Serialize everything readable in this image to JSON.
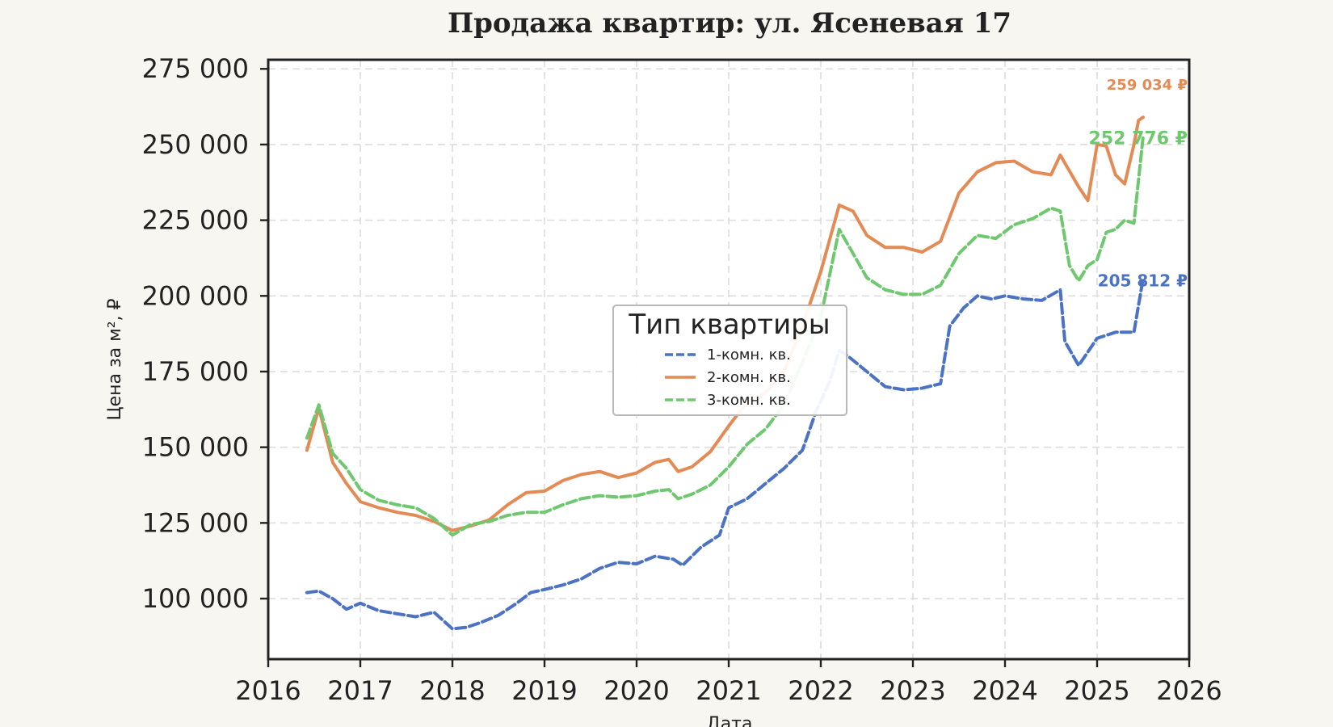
{
  "chart_data": {
    "type": "line",
    "title": "Продажа квартир: ул. Ясеневая 17",
    "xlabel": "Дата",
    "ylabel": "Цена за м², ₽",
    "xlim": [
      2016,
      2026
    ],
    "ylim": [
      80000,
      278000
    ],
    "x_ticks": [
      2016,
      2017,
      2018,
      2019,
      2020,
      2021,
      2022,
      2023,
      2024,
      2025,
      2026
    ],
    "x_tick_labels": [
      "2016",
      "2017",
      "2018",
      "2019",
      "2020",
      "2021",
      "2022",
      "2023",
      "2024",
      "2025",
      "2026"
    ],
    "y_ticks": [
      100000,
      125000,
      150000,
      175000,
      200000,
      225000,
      250000,
      275000
    ],
    "y_tick_labels": [
      "100 000",
      "125 000",
      "150 000",
      "175 000",
      "200 000",
      "225 000",
      "250 000",
      "275 000"
    ],
    "grid": true,
    "legend": {
      "title": "Тип квартиры",
      "position": "center"
    },
    "series": [
      {
        "name": "1-комн. кв.",
        "color": "#4c72c4",
        "style": "dashed",
        "end_label": "205 812 ₽",
        "x": [
          2016.42,
          2016.55,
          2016.7,
          2016.85,
          2017.0,
          2017.2,
          2017.4,
          2017.6,
          2017.8,
          2018.0,
          2018.15,
          2018.3,
          2018.5,
          2018.7,
          2018.85,
          2019.0,
          2019.2,
          2019.4,
          2019.6,
          2019.8,
          2020.0,
          2020.2,
          2020.4,
          2020.5,
          2020.7,
          2020.9,
          2021.0,
          2021.2,
          2021.4,
          2021.6,
          2021.8,
          2021.95,
          2022.1,
          2022.2,
          2022.3,
          2022.5,
          2022.7,
          2022.9,
          2023.1,
          2023.3,
          2023.4,
          2023.55,
          2023.7,
          2023.85,
          2024.0,
          2024.2,
          2024.4,
          2024.6,
          2024.65,
          2024.8,
          2025.0,
          2025.2,
          2025.4,
          2025.5
        ],
        "y": [
          102000,
          102500,
          100000,
          96500,
          98500,
          96000,
          95000,
          94000,
          95500,
          90000,
          90500,
          92000,
          94500,
          98500,
          102000,
          103000,
          104500,
          106500,
          110000,
          112000,
          111500,
          114000,
          113000,
          111000,
          117000,
          121000,
          130000,
          133000,
          138000,
          143000,
          149000,
          162000,
          172000,
          182000,
          180000,
          175000,
          170000,
          169000,
          169500,
          171000,
          190000,
          196000,
          200000,
          199000,
          200000,
          199000,
          198500,
          202000,
          185000,
          177000,
          186000,
          188000,
          188000,
          205812
        ]
      },
      {
        "name": "2-комн. кв.",
        "color": "#e48a55",
        "style": "solid",
        "end_label": "259 034 ₽",
        "x": [
          2016.42,
          2016.55,
          2016.7,
          2016.85,
          2017.0,
          2017.2,
          2017.4,
          2017.6,
          2017.8,
          2018.0,
          2018.2,
          2018.4,
          2018.6,
          2018.8,
          2019.0,
          2019.2,
          2019.4,
          2019.6,
          2019.8,
          2020.0,
          2020.2,
          2020.35,
          2020.45,
          2020.6,
          2020.8,
          2021.0,
          2021.2,
          2021.4,
          2021.6,
          2021.8,
          2022.0,
          2022.2,
          2022.35,
          2022.5,
          2022.7,
          2022.9,
          2023.1,
          2023.3,
          2023.5,
          2023.7,
          2023.9,
          2024.1,
          2024.3,
          2024.5,
          2024.6,
          2024.8,
          2024.9,
          2025.0,
          2025.1,
          2025.2,
          2025.3,
          2025.4,
          2025.45,
          2025.5
        ],
        "y": [
          149000,
          163000,
          145000,
          138000,
          132000,
          130000,
          128500,
          127500,
          125500,
          122500,
          124000,
          126000,
          131000,
          135000,
          135500,
          139000,
          141000,
          142000,
          140000,
          141500,
          145000,
          146000,
          142000,
          143500,
          148500,
          157000,
          165000,
          168000,
          175000,
          190000,
          208000,
          230000,
          228000,
          220000,
          216000,
          216000,
          214500,
          218000,
          234000,
          241000,
          244000,
          244500,
          241000,
          240000,
          246500,
          236000,
          231500,
          250000,
          249500,
          240000,
          237000,
          250000,
          258000,
          259034
        ]
      },
      {
        "name": "3-комн. кв.",
        "color": "#6fc86f",
        "style": "dashed",
        "end_label": "252 776 ₽",
        "x": [
          2016.42,
          2016.55,
          2016.7,
          2016.85,
          2017.0,
          2017.2,
          2017.4,
          2017.6,
          2017.8,
          2018.0,
          2018.2,
          2018.4,
          2018.6,
          2018.8,
          2019.0,
          2019.2,
          2019.4,
          2019.6,
          2019.8,
          2020.0,
          2020.2,
          2020.35,
          2020.45,
          2020.6,
          2020.8,
          2021.0,
          2021.2,
          2021.4,
          2021.6,
          2021.8,
          2022.0,
          2022.2,
          2022.35,
          2022.5,
          2022.7,
          2022.9,
          2023.1,
          2023.3,
          2023.5,
          2023.7,
          2023.9,
          2024.1,
          2024.3,
          2024.5,
          2024.6,
          2024.7,
          2024.8,
          2024.9,
          2025.0,
          2025.1,
          2025.2,
          2025.3,
          2025.4,
          2025.5
        ],
        "y": [
          153000,
          164000,
          148000,
          143000,
          136000,
          132500,
          131000,
          130000,
          126500,
          121000,
          124500,
          125500,
          127500,
          128500,
          128500,
          131000,
          133000,
          134000,
          133500,
          134000,
          135500,
          136000,
          133000,
          134500,
          137500,
          143500,
          151000,
          156000,
          164000,
          178000,
          193000,
          222000,
          214000,
          206000,
          202000,
          200500,
          200500,
          203500,
          214000,
          220000,
          219000,
          223500,
          225500,
          229000,
          228000,
          210000,
          205000,
          210000,
          212000,
          221000,
          222000,
          225000,
          224000,
          252776
        ]
      }
    ]
  }
}
